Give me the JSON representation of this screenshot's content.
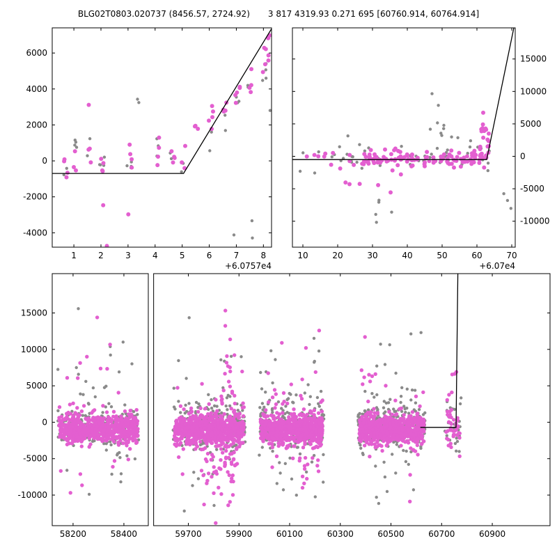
{
  "figure": {
    "title_left": "BLG02T0803.020737 (8456.57, 2724.92)",
    "title_right": "3 817 4319.93 0.271 695 [60760.914, 60764.914]",
    "background": "#ffffff"
  },
  "colors": {
    "magenta": "#e35fd0",
    "gray": "#8a8a8a",
    "line": "#000000",
    "frame": "#000000"
  },
  "chart_data": [
    {
      "id": "top_left",
      "type": "scatter",
      "title": "",
      "xlabel": "",
      "ylabel": "",
      "grid": false,
      "x_offset_label": "+6.0757e4",
      "ylim": [
        -4800,
        7400
      ],
      "yticks": [
        -4000,
        -2000,
        0,
        2000,
        4000,
        6000
      ],
      "ytick_side": "left",
      "panels": [
        {
          "frac": [
            0,
            1
          ],
          "xlim": [
            0.2,
            8.3
          ],
          "xticks": [
            1,
            2,
            3,
            4,
            5,
            6,
            7,
            8
          ]
        }
      ],
      "line": {
        "color": "#000000",
        "points": [
          [
            0.2,
            -700
          ],
          [
            5.05,
            -700
          ],
          [
            8.32,
            7400
          ]
        ]
      },
      "series": [
        {
          "name": "comparison-gray",
          "color": "#8a8a8a",
          "r": 2.2,
          "seed": 3,
          "clusters": [
            {
              "x": [
                0.62,
                0.78
              ],
              "n": 2,
              "yc": -350,
              "ys": 250
            },
            {
              "x": [
                0.95,
                1.12
              ],
              "n": 4,
              "yc": 900,
              "ys": 450
            },
            {
              "x": [
                1.45,
                1.62
              ],
              "n": 2,
              "yc": 800,
              "ys": 350
            },
            {
              "x": [
                1.95,
                2.15
              ],
              "n": 4,
              "yc": -150,
              "ys": 450
            },
            {
              "x": [
                2.95,
                3.15
              ],
              "n": 4,
              "yc": 250,
              "ys": 550
            },
            {
              "x": [
                3.28,
                3.42
              ],
              "n": 2,
              "yc": 3400,
              "ys": 150
            },
            {
              "x": [
                3.95,
                4.12
              ],
              "n": 3,
              "yc": 1100,
              "ys": 550
            },
            {
              "x": [
                4.55,
                4.72
              ],
              "n": 3,
              "yc": 600,
              "ys": 450
            },
            {
              "x": [
                4.95,
                5.1
              ],
              "n": 2,
              "yc": -150,
              "ys": 300
            },
            {
              "x": [
                5.95,
                6.12
              ],
              "n": 3,
              "yc": 700,
              "ys": 650
            },
            {
              "x": [
                6.45,
                6.6
              ],
              "n": 2,
              "yc": 2300,
              "ys": 250
            },
            {
              "x": [
                6.88,
                6.98
              ],
              "n": 1,
              "yc": -4250,
              "ys": 100
            },
            {
              "x": [
                6.92,
                7.12
              ],
              "n": 3,
              "yc": 3250,
              "ys": 350
            },
            {
              "x": [
                7.42,
                7.58
              ],
              "n": 2,
              "yc": 3900,
              "ys": 250
            },
            {
              "x": [
                7.55,
                7.7
              ],
              "n": 2,
              "yc": -3350,
              "ys": 300
            },
            {
              "x": [
                7.92,
                8.18
              ],
              "n": 4,
              "yc": 4700,
              "ys": 550
            },
            {
              "x": [
                8.22,
                8.3
              ],
              "n": 1,
              "yc": 2600,
              "ys": 100
            }
          ]
        },
        {
          "name": "target-magenta",
          "color": "#e35fd0",
          "r": 3,
          "seed": 9,
          "clusters": [
            {
              "x": [
                0.6,
                0.8
              ],
              "n": 4,
              "yc": -450,
              "ys": 350
            },
            {
              "x": [
                0.95,
                1.12
              ],
              "n": 3,
              "yc": -100,
              "ys": 450
            },
            {
              "x": [
                1.45,
                1.65
              ],
              "n": 3,
              "yc": 250,
              "ys": 500
            },
            {
              "x": [
                1.5,
                1.6
              ],
              "n": 1,
              "yc": 3100,
              "ys": 80
            },
            {
              "x": [
                1.95,
                2.15
              ],
              "n": 4,
              "yc": -350,
              "ys": 380
            },
            {
              "x": [
                2.05,
                2.15
              ],
              "n": 1,
              "yc": -2500,
              "ys": 80
            },
            {
              "x": [
                2.16,
                2.26
              ],
              "n": 1,
              "yc": -4650,
              "ys": 60
            },
            {
              "x": [
                2.95,
                3.15
              ],
              "n": 4,
              "yc": 100,
              "ys": 550
            },
            {
              "x": [
                3.0,
                3.1
              ],
              "n": 1,
              "yc": -2900,
              "ys": 80
            },
            {
              "x": [
                3.95,
                4.15
              ],
              "n": 4,
              "yc": 420,
              "ys": 650
            },
            {
              "x": [
                4.55,
                4.75
              ],
              "n": 4,
              "yc": 320,
              "ys": 480
            },
            {
              "x": [
                4.95,
                5.12
              ],
              "n": 3,
              "yc": 120,
              "ys": 380
            },
            {
              "x": [
                5.45,
                5.65
              ],
              "n": 3,
              "yc": 1800,
              "ys": 240
            },
            {
              "x": [
                5.95,
                6.15
              ],
              "n": 4,
              "yc": 2300,
              "ys": 380
            },
            {
              "x": [
                6.02,
                6.12
              ],
              "n": 1,
              "yc": 3050,
              "ys": 60
            },
            {
              "x": [
                6.45,
                6.65
              ],
              "n": 4,
              "yc": 2620,
              "ys": 300
            },
            {
              "x": [
                6.95,
                7.15
              ],
              "n": 5,
              "yc": 3620,
              "ys": 420
            },
            {
              "x": [
                7.45,
                7.65
              ],
              "n": 4,
              "yc": 4250,
              "ys": 420
            },
            {
              "x": [
                7.95,
                8.2
              ],
              "n": 6,
              "yc": 5300,
              "ys": 600
            },
            {
              "x": [
                8.15,
                8.28
              ],
              "n": 2,
              "yc": 6900,
              "ys": 180
            }
          ]
        }
      ]
    },
    {
      "id": "top_right",
      "type": "scatter",
      "title": "",
      "xlabel": "",
      "ylabel": "",
      "grid": false,
      "x_offset_label": "+6.07e4",
      "ylim": [
        -14000,
        19800
      ],
      "yticks": [
        -10000,
        -5000,
        0,
        5000,
        10000,
        15000
      ],
      "ytick_side": "right",
      "panels": [
        {
          "frac": [
            0,
            1
          ],
          "xlim": [
            7,
            71
          ],
          "xticks": [
            10,
            20,
            30,
            40,
            50,
            60,
            70
          ]
        }
      ],
      "line": {
        "color": "#000000",
        "points": [
          [
            7,
            -500
          ],
          [
            62.8,
            -500
          ],
          [
            70.6,
            19800
          ]
        ]
      },
      "series": [
        {
          "name": "comparison-gray",
          "color": "#8a8a8a",
          "r": 2.2,
          "seed": 5,
          "clusters": [
            {
              "x": [
                9,
                64
              ],
              "n": 55,
              "yc": -150,
              "ys": 1500,
              "ymin": -4200,
              "ymax": 4200
            },
            {
              "x": [
                44,
                57
              ],
              "n": 8,
              "yc": 4800,
              "ys": 1900,
              "ymin": 2000,
              "ymax": 8600
            },
            {
              "x": [
                30,
                44
              ],
              "n": 5,
              "yc": -8200,
              "ys": 2100,
              "ymin": -11800,
              "ymax": -5000
            },
            {
              "x": [
                65,
                70.5
              ],
              "n": 3,
              "yc": -7500,
              "ys": 2600,
              "ymin": -11200,
              "ymax": -4200
            },
            {
              "x": [
                46,
                52
              ],
              "n": 2,
              "yc": 9300,
              "ys": 500
            }
          ]
        },
        {
          "name": "target-magenta",
          "color": "#e35fd0",
          "r": 3,
          "seed": 8,
          "clusters": [
            {
              "x": [
                27,
                63
              ],
              "n": 120,
              "yc": -400,
              "ys": 620
            },
            {
              "x": [
                9,
                26
              ],
              "n": 11,
              "yc": -700,
              "ys": 1100
            },
            {
              "x": [
                18,
                36
              ],
              "n": 5,
              "yc": -5100,
              "ys": 700
            },
            {
              "x": [
                61,
                63.6
              ],
              "n": 20,
              "yc": 2600,
              "ys": 2100,
              "ymin": -600,
              "ymax": 7600
            },
            {
              "x": [
                58,
                61
              ],
              "n": 6,
              "yc": 900,
              "ys": 700
            }
          ]
        }
      ]
    },
    {
      "id": "bottom",
      "type": "scatter",
      "title": "",
      "xlabel": "",
      "ylabel": "",
      "grid": false,
      "x_offset_label": "",
      "ylim": [
        -14200,
        20400
      ],
      "yticks": [
        -10000,
        -5000,
        0,
        5000,
        10000,
        15000
      ],
      "ytick_side": "left",
      "panels": [
        {
          "frac": [
            0,
            0.193
          ],
          "xlim": [
            58118,
            58496
          ],
          "xticks": [
            58200,
            58400
          ]
        },
        {
          "frac": [
            0.2037,
            1
          ],
          "xlim": [
            59563,
            61128
          ],
          "xticks": [
            59700,
            59900,
            60100,
            60300,
            60500,
            60700,
            60900
          ]
        }
      ],
      "line": {
        "color": "#000000",
        "points": [
          [
            60616,
            -700
          ],
          [
            60757,
            -700
          ],
          [
            60764,
            20400
          ]
        ]
      },
      "series": [
        {
          "name": "comparison-gray",
          "color": "#8a8a8a",
          "r": 2.2,
          "seed": 21,
          "clusters": [
            {
              "x": [
                58140,
                58460
              ],
              "n": 170,
              "yc": -500,
              "ys": 1400
            },
            {
              "x": [
                58140,
                58460
              ],
              "n": 55,
              "yc": 500,
              "ys": 5200,
              "ymin": -12800,
              "ymax": 16800
            },
            {
              "x": [
                59640,
                59925
              ],
              "n": 220,
              "yc": -500,
              "ys": 1500
            },
            {
              "x": [
                59640,
                59925
              ],
              "n": 60,
              "yc": 0,
              "ys": 5200,
              "ymin": -13200,
              "ymax": 17200
            },
            {
              "x": [
                59980,
                60235
              ],
              "n": 200,
              "yc": -500,
              "ys": 1500
            },
            {
              "x": [
                59980,
                60235
              ],
              "n": 55,
              "yc": 0,
              "ys": 5200,
              "ymin": -13000,
              "ymax": 17000
            },
            {
              "x": [
                60370,
                60635
              ],
              "n": 200,
              "yc": -500,
              "ys": 1500
            },
            {
              "x": [
                60370,
                60635
              ],
              "n": 55,
              "yc": 200,
              "ys": 5200,
              "ymin": -12500,
              "ymax": 17000
            },
            {
              "x": [
                60712,
                60778
              ],
              "n": 25,
              "yc": -200,
              "ys": 2400,
              "ymin": -7800,
              "ymax": 9200
            }
          ]
        },
        {
          "name": "target-magenta",
          "color": "#e35fd0",
          "r": 2.7,
          "seed": 42,
          "clusters": [
            {
              "x": [
                58145,
                58455
              ],
              "n": 600,
              "yc": -900,
              "ys": 950
            },
            {
              "x": [
                58145,
                58455
              ],
              "n": 45,
              "yc": 0,
              "ys": 4800,
              "ymin": -11800,
              "ymax": 16800
            },
            {
              "x": [
                59645,
                59920
              ],
              "n": 700,
              "yc": -1000,
              "ys": 1050
            },
            {
              "x": [
                59755,
                59900
              ],
              "n": 55,
              "yc": -5500,
              "ys": 3000,
              "ymin": -13900,
              "ymax": -1800
            },
            {
              "x": [
                59645,
                59920
              ],
              "n": 40,
              "yc": 1500,
              "ys": 5200,
              "ymin": -9000,
              "ymax": 17600
            },
            {
              "x": [
                59830,
                59875
              ],
              "n": 18,
              "yc": 3000,
              "ys": 6500,
              "ymin": -12000,
              "ymax": 17400
            },
            {
              "x": [
                59985,
                60230
              ],
              "n": 650,
              "yc": -1000,
              "ys": 980
            },
            {
              "x": [
                59985,
                60230
              ],
              "n": 45,
              "yc": 0,
              "ys": 4600,
              "ymin": -12800,
              "ymax": 17800
            },
            {
              "x": [
                60140,
                60180
              ],
              "n": 15,
              "yc": 500,
              "ys": 7000,
              "ymin": -12600,
              "ymax": 17500
            },
            {
              "x": [
                60375,
                60630
              ],
              "n": 650,
              "yc": -1000,
              "ys": 980
            },
            {
              "x": [
                60375,
                60630
              ],
              "n": 45,
              "yc": 0,
              "ys": 4600,
              "ymin": -11200,
              "ymax": 16600
            },
            {
              "x": [
                60718,
                60776
              ],
              "n": 40,
              "yc": -600,
              "ys": 1700,
              "ymin": -4800,
              "ymax": 7000
            },
            {
              "x": [
                60735,
                60760
              ],
              "n": 4,
              "yc": 5800,
              "ys": 900
            }
          ]
        }
      ]
    }
  ]
}
